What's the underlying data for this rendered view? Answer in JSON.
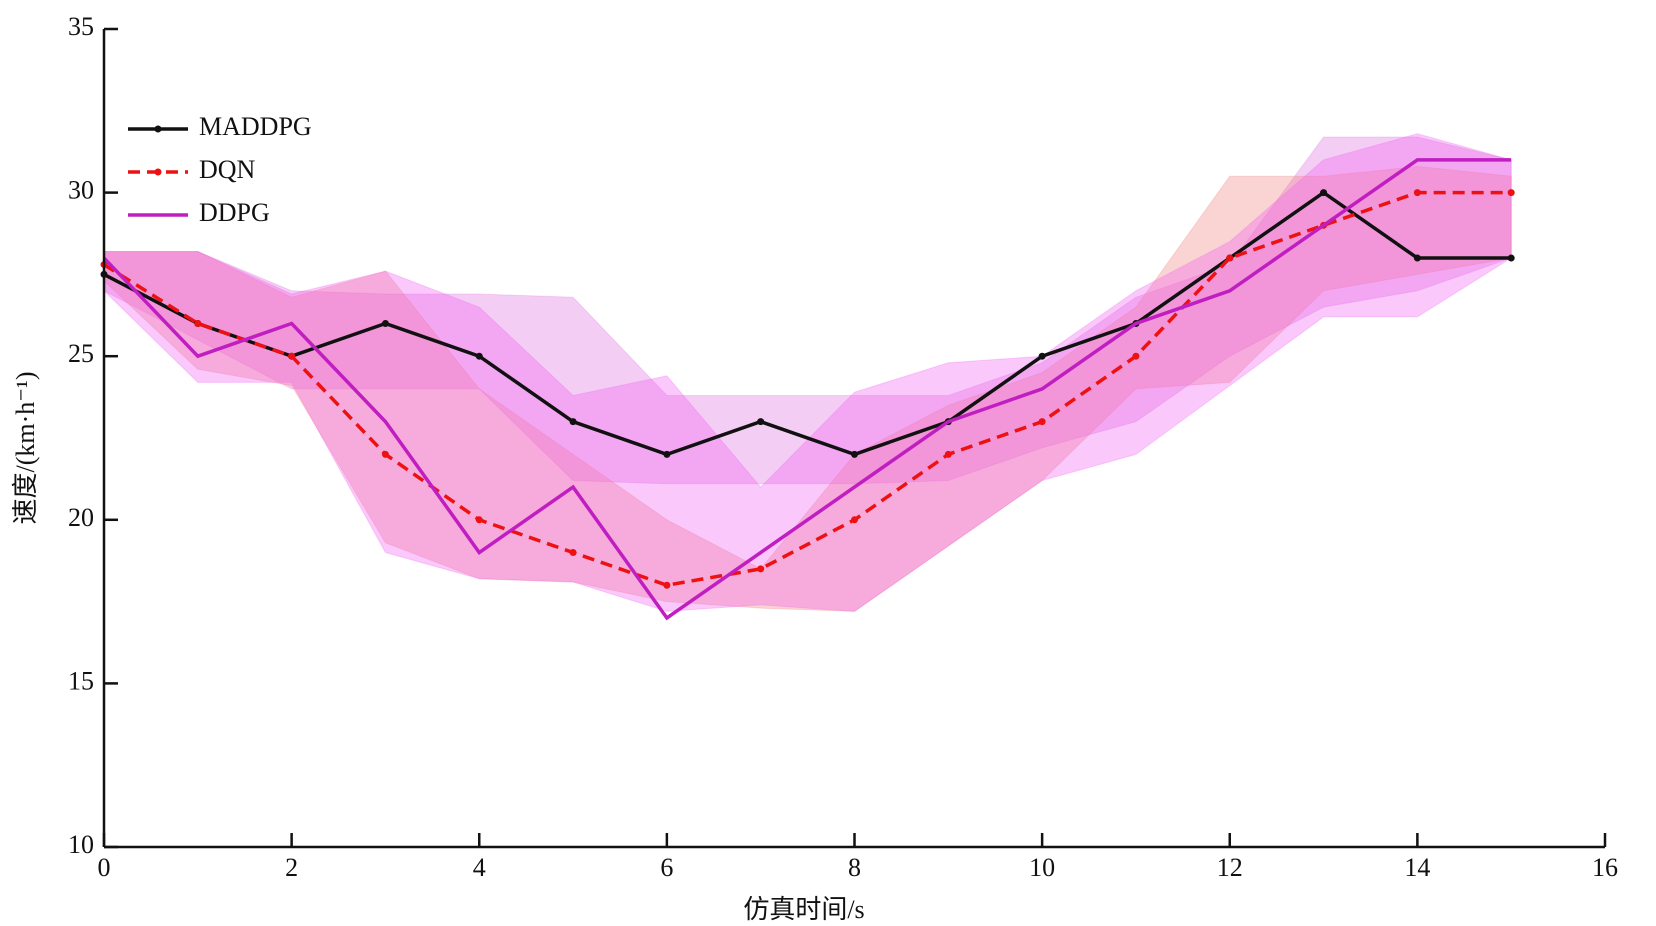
{
  "chart_data": {
    "type": "line",
    "xlabel": "仿真时间/s",
    "ylabel": "速度/(km·h⁻¹)",
    "x": [
      0,
      1,
      2,
      3,
      4,
      5,
      6,
      7,
      8,
      9,
      10,
      11,
      12,
      13,
      14,
      15
    ],
    "xlim": [
      0,
      16
    ],
    "xticks": [
      0,
      2,
      4,
      6,
      8,
      10,
      12,
      14,
      16
    ],
    "ylim": [
      10,
      35
    ],
    "yticks": [
      10,
      15,
      20,
      25,
      30,
      35
    ],
    "legend": "upper left",
    "series": [
      {
        "name": "MADDPG",
        "color": "#111111",
        "style": "solid",
        "marker": true,
        "values": [
          27.5,
          26,
          25,
          26,
          25,
          23,
          22,
          23,
          22,
          23,
          25,
          26,
          28,
          30,
          28,
          28
        ],
        "band_color": "#e070e0",
        "lower": [
          27,
          25.5,
          24,
          24,
          24,
          21.2,
          21.1,
          21.1,
          21.1,
          21.2,
          22.2,
          23,
          25,
          26.5,
          27,
          28
        ],
        "upper": [
          28.2,
          28.2,
          27,
          26.9,
          26.9,
          26.8,
          23.8,
          23.8,
          23.8,
          23.8,
          24.8,
          26.8,
          27.8,
          31.7,
          31.7,
          31
        ]
      },
      {
        "name": "DQN",
        "color": "#ee1111",
        "style": "dashed",
        "marker": true,
        "values": [
          27.8,
          26,
          25,
          22,
          20,
          19,
          18,
          18.5,
          20,
          22,
          23,
          25,
          28,
          29,
          30,
          30
        ],
        "band_color": "#f08080",
        "lower": [
          27.3,
          24.6,
          24.1,
          19.3,
          18.2,
          18.1,
          17.5,
          17.3,
          17.2,
          19.2,
          21.2,
          24,
          24.2,
          27,
          27.5,
          28
        ],
        "upper": [
          28.2,
          28.2,
          26.8,
          27.6,
          24,
          22,
          20,
          18.5,
          22,
          23.5,
          24.5,
          26.5,
          30.5,
          30.5,
          30.8,
          30.5
        ]
      },
      {
        "name": "DDPG",
        "color": "#c01ec0",
        "style": "solid",
        "marker": false,
        "values": [
          28,
          25,
          26,
          23,
          19,
          21,
          17,
          19,
          21,
          23,
          24,
          26,
          27,
          29,
          31,
          31
        ],
        "band_color": "#f060f0",
        "lower": [
          27,
          24.2,
          24.2,
          19,
          18.2,
          18.1,
          17.2,
          17.4,
          17.2,
          19.2,
          21.2,
          22,
          24.1,
          26.2,
          26.2,
          28
        ],
        "upper": [
          28.2,
          28.2,
          26.9,
          27.6,
          26.5,
          23.8,
          24.4,
          21,
          23.9,
          24.8,
          25,
          27,
          28.5,
          31,
          31.8,
          31
        ]
      }
    ]
  }
}
